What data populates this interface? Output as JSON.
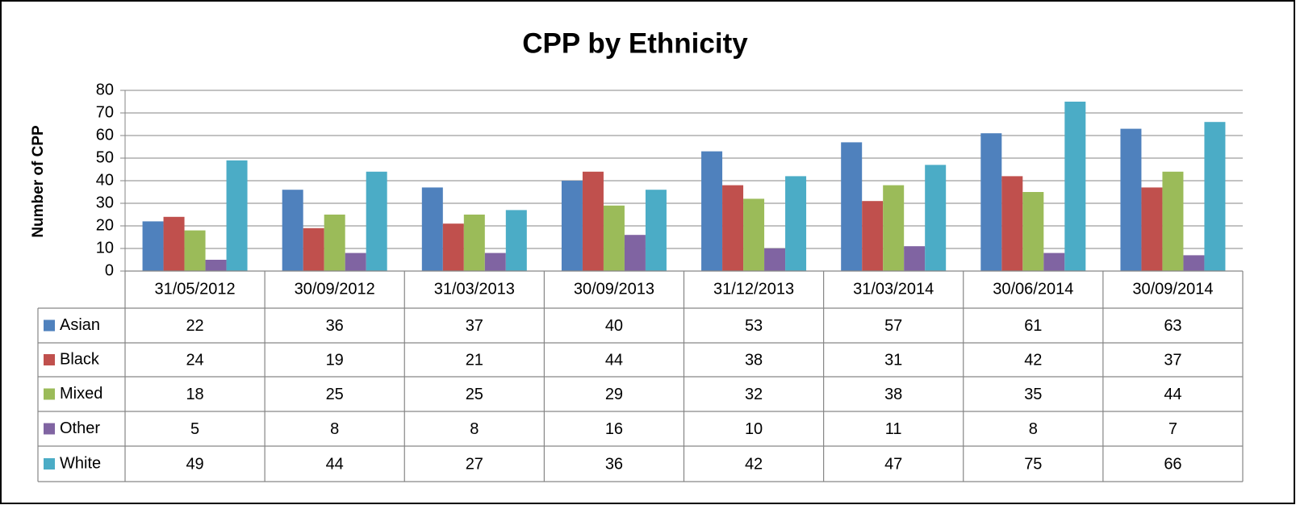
{
  "chart_data": {
    "type": "bar",
    "title": "CPP by Ethnicity",
    "y_label": "Number of CPP",
    "categories": [
      "31/05/2012",
      "30/09/2012",
      "31/03/2013",
      "30/09/2013",
      "31/12/2013",
      "31/03/2014",
      "30/06/2014",
      "30/09/2014"
    ],
    "series": [
      {
        "name": "Asian",
        "color": "#4f81bd",
        "values": [
          22,
          36,
          37,
          40,
          53,
          57,
          61,
          63
        ]
      },
      {
        "name": "Black",
        "color": "#c0504d",
        "values": [
          24,
          19,
          21,
          44,
          38,
          31,
          42,
          37
        ]
      },
      {
        "name": "Mixed",
        "color": "#9bbb59",
        "values": [
          18,
          25,
          25,
          29,
          32,
          38,
          35,
          44
        ]
      },
      {
        "name": "Other",
        "color": "#8064a2",
        "values": [
          5,
          8,
          8,
          16,
          10,
          11,
          8,
          7
        ]
      },
      {
        "name": "White",
        "color": "#4bacc6",
        "values": [
          49,
          44,
          27,
          36,
          42,
          47,
          75,
          66
        ]
      }
    ],
    "ylim": [
      0,
      80
    ],
    "yticks": [
      0,
      10,
      20,
      30,
      40,
      50,
      60,
      70,
      80
    ],
    "grid": true,
    "data_table": true
  }
}
